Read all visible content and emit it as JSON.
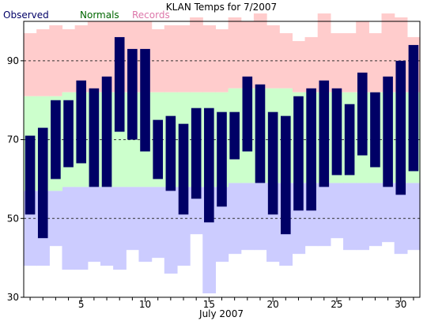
{
  "chart_data": {
    "type": "bar",
    "title": "KLAN Temps for 7/2007",
    "xlabel": "July 2007",
    "ylabel": "",
    "ylim": [
      30,
      100
    ],
    "xlim": [
      0.5,
      31.5
    ],
    "x_ticks": [
      5,
      10,
      15,
      20,
      25,
      30
    ],
    "y_ticks": [
      30,
      50,
      70,
      90
    ],
    "dashed_gridlines_y": [
      50,
      70,
      90
    ],
    "legend": [
      {
        "name": "Observed",
        "color": "#000066"
      },
      {
        "name": "Normals",
        "color": "#006600"
      },
      {
        "name": "Records",
        "color": "#dd77aa"
      }
    ],
    "days": [
      1,
      2,
      3,
      4,
      5,
      6,
      7,
      8,
      9,
      10,
      11,
      12,
      13,
      14,
      15,
      16,
      17,
      18,
      19,
      20,
      21,
      22,
      23,
      24,
      25,
      26,
      27,
      28,
      29,
      30,
      31
    ],
    "series": [
      {
        "name": "Observed",
        "high": [
          71,
          73,
          80,
          80,
          85,
          83,
          86,
          96,
          93,
          93,
          75,
          76,
          74,
          78,
          78,
          77,
          77,
          86,
          84,
          77,
          76,
          81,
          83,
          85,
          83,
          79,
          87,
          82,
          86,
          90,
          94
        ],
        "low": [
          51,
          45,
          60,
          63,
          64,
          58,
          58,
          72,
          70,
          67,
          60,
          57,
          51,
          55,
          49,
          53,
          65,
          67,
          59,
          51,
          46,
          52,
          52,
          58,
          61,
          61,
          66,
          63,
          58,
          56,
          62
        ]
      },
      {
        "name": "Normals",
        "high": [
          81,
          81,
          81,
          82,
          82,
          82,
          82,
          82,
          82,
          82,
          82,
          82,
          82,
          82,
          82,
          82,
          83,
          83,
          83,
          83,
          83,
          82,
          82,
          82,
          82,
          82,
          82,
          82,
          82,
          82,
          82
        ],
        "low": [
          57,
          57,
          57,
          58,
          58,
          58,
          58,
          58,
          58,
          58,
          58,
          58,
          58,
          58,
          58,
          58,
          59,
          59,
          59,
          59,
          59,
          59,
          59,
          59,
          59,
          59,
          59,
          59,
          59,
          59,
          59
        ]
      },
      {
        "name": "Records",
        "high": [
          97,
          98,
          99,
          98,
          99,
          100,
          100,
          100,
          100,
          100,
          98,
          99,
          99,
          101,
          99,
          98,
          101,
          100,
          102,
          99,
          97,
          95,
          96,
          102,
          97,
          97,
          100,
          97,
          102,
          101,
          96
        ],
        "low": [
          38,
          38,
          43,
          37,
          37,
          39,
          38,
          37,
          42,
          39,
          40,
          36,
          38,
          46,
          31,
          39,
          41,
          42,
          42,
          39,
          38,
          41,
          43,
          43,
          45,
          42,
          42,
          43,
          44,
          41,
          42
        ]
      }
    ]
  }
}
